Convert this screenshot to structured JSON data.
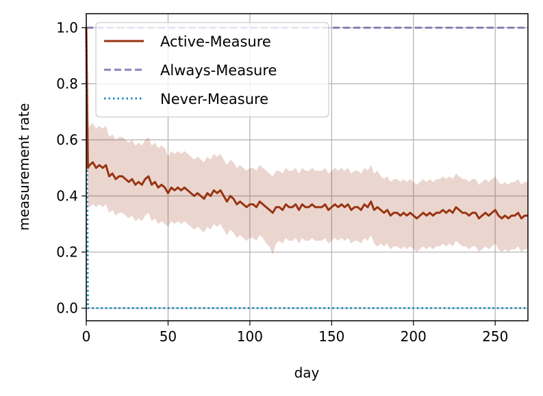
{
  "chart_data": {
    "type": "line",
    "title": "",
    "xlabel": "day",
    "ylabel": "measurement rate",
    "xlim": [
      0,
      270
    ],
    "ylim": [
      -0.045,
      1.05
    ],
    "xticks": [
      0,
      50,
      100,
      150,
      200,
      250
    ],
    "xtick_labels": [
      "0",
      "50",
      "100",
      "150",
      "200",
      "250"
    ],
    "yticks": [
      0.0,
      0.2,
      0.4,
      0.6,
      0.8,
      1.0
    ],
    "ytick_labels": [
      "0.0",
      "0.2",
      "0.4",
      "0.6",
      "0.8",
      "1.0"
    ],
    "grid": true,
    "legend_position": "top-left",
    "series": [
      {
        "name": "Active-Measure",
        "color": "#993311",
        "style": "solid",
        "x": [
          0,
          1,
          2,
          4,
          6,
          8,
          10,
          12,
          14,
          16,
          18,
          20,
          22,
          24,
          26,
          28,
          30,
          32,
          34,
          36,
          38,
          40,
          42,
          44,
          46,
          48,
          50,
          52,
          54,
          56,
          58,
          60,
          62,
          64,
          66,
          68,
          70,
          72,
          74,
          76,
          78,
          80,
          82,
          84,
          86,
          88,
          90,
          92,
          94,
          96,
          98,
          100,
          102,
          104,
          106,
          108,
          110,
          112,
          114,
          116,
          118,
          120,
          122,
          124,
          126,
          128,
          130,
          132,
          134,
          136,
          138,
          140,
          142,
          144,
          146,
          148,
          150,
          152,
          154,
          156,
          158,
          160,
          162,
          164,
          166,
          168,
          170,
          172,
          174,
          176,
          178,
          180,
          182,
          184,
          186,
          188,
          190,
          192,
          194,
          196,
          198,
          200,
          202,
          204,
          206,
          208,
          210,
          212,
          214,
          216,
          218,
          220,
          222,
          224,
          226,
          228,
          230,
          232,
          234,
          236,
          238,
          240,
          242,
          244,
          246,
          248,
          250,
          252,
          254,
          256,
          258,
          260,
          262,
          264,
          266,
          268,
          270
        ],
        "y": [
          1.0,
          0.5,
          0.51,
          0.52,
          0.5,
          0.51,
          0.5,
          0.51,
          0.47,
          0.48,
          0.46,
          0.47,
          0.47,
          0.46,
          0.45,
          0.46,
          0.44,
          0.45,
          0.44,
          0.46,
          0.47,
          0.44,
          0.45,
          0.43,
          0.44,
          0.43,
          0.41,
          0.43,
          0.42,
          0.43,
          0.42,
          0.43,
          0.42,
          0.41,
          0.4,
          0.41,
          0.4,
          0.39,
          0.41,
          0.4,
          0.42,
          0.41,
          0.42,
          0.4,
          0.38,
          0.4,
          0.39,
          0.37,
          0.38,
          0.37,
          0.36,
          0.37,
          0.37,
          0.36,
          0.38,
          0.37,
          0.36,
          0.35,
          0.34,
          0.36,
          0.36,
          0.35,
          0.37,
          0.36,
          0.36,
          0.37,
          0.35,
          0.37,
          0.36,
          0.36,
          0.37,
          0.36,
          0.36,
          0.36,
          0.37,
          0.35,
          0.36,
          0.37,
          0.36,
          0.37,
          0.36,
          0.37,
          0.35,
          0.36,
          0.36,
          0.35,
          0.37,
          0.36,
          0.38,
          0.35,
          0.36,
          0.35,
          0.34,
          0.35,
          0.33,
          0.34,
          0.34,
          0.33,
          0.34,
          0.33,
          0.34,
          0.33,
          0.32,
          0.33,
          0.34,
          0.33,
          0.34,
          0.33,
          0.34,
          0.34,
          0.35,
          0.34,
          0.35,
          0.34,
          0.36,
          0.35,
          0.34,
          0.34,
          0.33,
          0.34,
          0.34,
          0.32,
          0.33,
          0.34,
          0.33,
          0.34,
          0.35,
          0.33,
          0.32,
          0.33,
          0.32,
          0.33,
          0.33,
          0.34,
          0.32,
          0.33,
          0.33
        ],
        "band_lower": [
          1.0,
          0.36,
          0.36,
          0.37,
          0.36,
          0.37,
          0.36,
          0.37,
          0.34,
          0.35,
          0.33,
          0.34,
          0.34,
          0.33,
          0.32,
          0.33,
          0.31,
          0.32,
          0.31,
          0.33,
          0.34,
          0.31,
          0.32,
          0.3,
          0.31,
          0.3,
          0.29,
          0.31,
          0.3,
          0.31,
          0.3,
          0.31,
          0.3,
          0.29,
          0.28,
          0.29,
          0.28,
          0.27,
          0.29,
          0.28,
          0.3,
          0.29,
          0.3,
          0.28,
          0.26,
          0.28,
          0.27,
          0.25,
          0.26,
          0.25,
          0.24,
          0.25,
          0.25,
          0.24,
          0.26,
          0.25,
          0.23,
          0.22,
          0.19,
          0.23,
          0.24,
          0.23,
          0.25,
          0.24,
          0.24,
          0.25,
          0.23,
          0.25,
          0.24,
          0.24,
          0.25,
          0.24,
          0.24,
          0.24,
          0.25,
          0.23,
          0.24,
          0.25,
          0.24,
          0.25,
          0.24,
          0.25,
          0.23,
          0.24,
          0.24,
          0.23,
          0.25,
          0.24,
          0.26,
          0.23,
          0.22,
          0.23,
          0.22,
          0.23,
          0.21,
          0.22,
          0.22,
          0.21,
          0.22,
          0.21,
          0.22,
          0.21,
          0.2,
          0.21,
          0.22,
          0.21,
          0.22,
          0.21,
          0.22,
          0.22,
          0.23,
          0.22,
          0.23,
          0.22,
          0.24,
          0.23,
          0.22,
          0.22,
          0.21,
          0.22,
          0.22,
          0.2,
          0.21,
          0.22,
          0.21,
          0.22,
          0.23,
          0.21,
          0.2,
          0.21,
          0.2,
          0.21,
          0.21,
          0.22,
          0.2,
          0.21,
          0.21
        ],
        "band_upper": [
          1.0,
          0.64,
          0.65,
          0.66,
          0.64,
          0.65,
          0.64,
          0.65,
          0.61,
          0.62,
          0.6,
          0.61,
          0.61,
          0.6,
          0.59,
          0.6,
          0.58,
          0.59,
          0.58,
          0.6,
          0.61,
          0.58,
          0.59,
          0.57,
          0.58,
          0.57,
          0.54,
          0.56,
          0.55,
          0.56,
          0.55,
          0.56,
          0.55,
          0.54,
          0.53,
          0.54,
          0.53,
          0.52,
          0.54,
          0.53,
          0.55,
          0.54,
          0.55,
          0.53,
          0.51,
          0.53,
          0.52,
          0.5,
          0.51,
          0.5,
          0.49,
          0.5,
          0.5,
          0.49,
          0.51,
          0.5,
          0.49,
          0.48,
          0.47,
          0.49,
          0.49,
          0.48,
          0.5,
          0.49,
          0.49,
          0.5,
          0.48,
          0.5,
          0.49,
          0.49,
          0.5,
          0.49,
          0.49,
          0.49,
          0.5,
          0.48,
          0.49,
          0.5,
          0.49,
          0.5,
          0.49,
          0.5,
          0.48,
          0.49,
          0.49,
          0.48,
          0.5,
          0.49,
          0.51,
          0.48,
          0.49,
          0.47,
          0.46,
          0.47,
          0.45,
          0.46,
          0.46,
          0.45,
          0.46,
          0.45,
          0.46,
          0.45,
          0.44,
          0.45,
          0.46,
          0.45,
          0.46,
          0.45,
          0.46,
          0.46,
          0.47,
          0.46,
          0.47,
          0.46,
          0.48,
          0.47,
          0.46,
          0.46,
          0.45,
          0.46,
          0.46,
          0.44,
          0.45,
          0.46,
          0.45,
          0.46,
          0.47,
          0.45,
          0.44,
          0.45,
          0.44,
          0.45,
          0.45,
          0.46,
          0.44,
          0.45,
          0.45
        ]
      },
      {
        "name": "Always-Measure",
        "color": "#8b7fb8",
        "style": "dashed",
        "x": [
          0,
          270
        ],
        "y": [
          1.0,
          1.0
        ]
      },
      {
        "name": "Never-Measure",
        "color": "#1f8fc4",
        "style": "dotted",
        "x": [
          0,
          1,
          270
        ],
        "y": [
          1.0,
          0.0,
          0.0
        ]
      }
    ]
  }
}
